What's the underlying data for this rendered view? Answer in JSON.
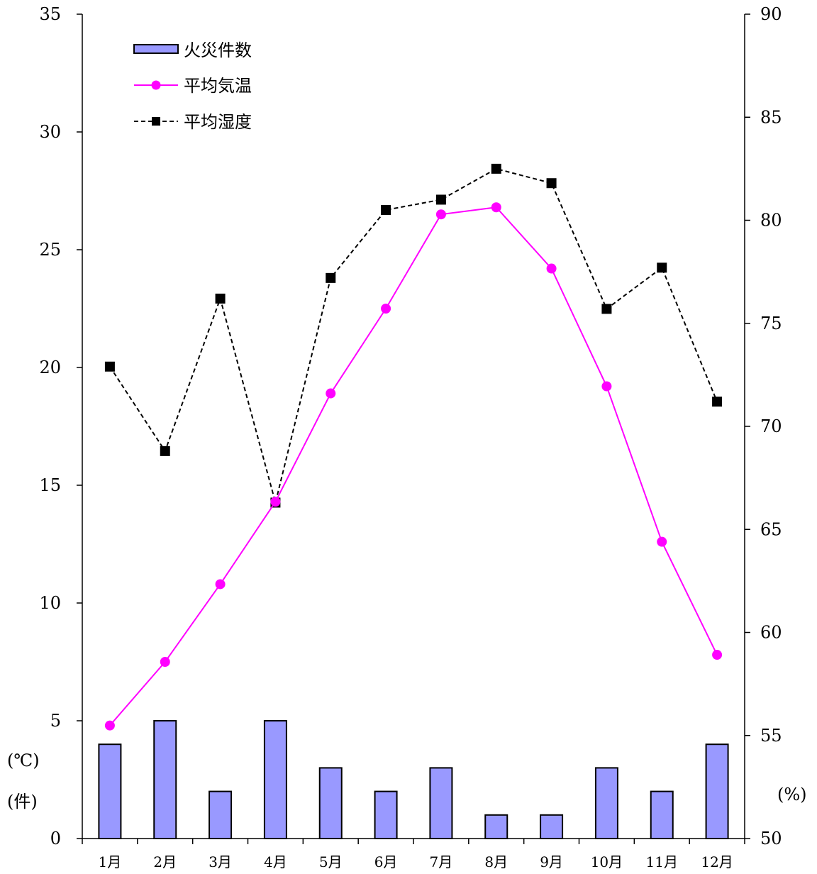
{
  "chart_data": {
    "type": "bar",
    "categories": [
      "1月",
      "2月",
      "3月",
      "4月",
      "5月",
      "6月",
      "7月",
      "8月",
      "9月",
      "10月",
      "11月",
      "12月"
    ],
    "series": [
      {
        "name": "火災件数",
        "type": "bar",
        "axis": "left",
        "color": "#9999ff",
        "values": [
          4,
          5,
          2,
          5,
          3,
          2,
          3,
          1,
          1,
          3,
          2,
          4
        ]
      },
      {
        "name": "平均気温",
        "type": "line",
        "axis": "left",
        "color": "#ff00ff",
        "marker": "circle",
        "line_style": "solid",
        "values": [
          4.8,
          7.5,
          10.8,
          14.3,
          18.9,
          22.5,
          26.5,
          26.8,
          24.2,
          19.2,
          12.6,
          7.8
        ]
      },
      {
        "name": "平均湿度",
        "type": "line",
        "axis": "right",
        "color": "#000000",
        "marker": "square",
        "line_style": "dashed",
        "values": [
          72.9,
          68.8,
          76.2,
          66.3,
          77.2,
          80.5,
          81.0,
          82.5,
          81.8,
          75.7,
          77.7,
          71.2
        ]
      }
    ],
    "left_axis": {
      "min": 0,
      "max": 35,
      "ticks": [
        "0",
        "5",
        "10",
        "15",
        "20",
        "25",
        "30",
        "35"
      ],
      "units": [
        "(℃)",
        "(件)"
      ]
    },
    "right_axis": {
      "min": 50,
      "max": 90,
      "ticks": [
        "50",
        "55",
        "60",
        "65",
        "70",
        "75",
        "80",
        "85",
        "90"
      ],
      "unit": "(%)"
    },
    "grid": false,
    "legend_position": "top-left"
  }
}
